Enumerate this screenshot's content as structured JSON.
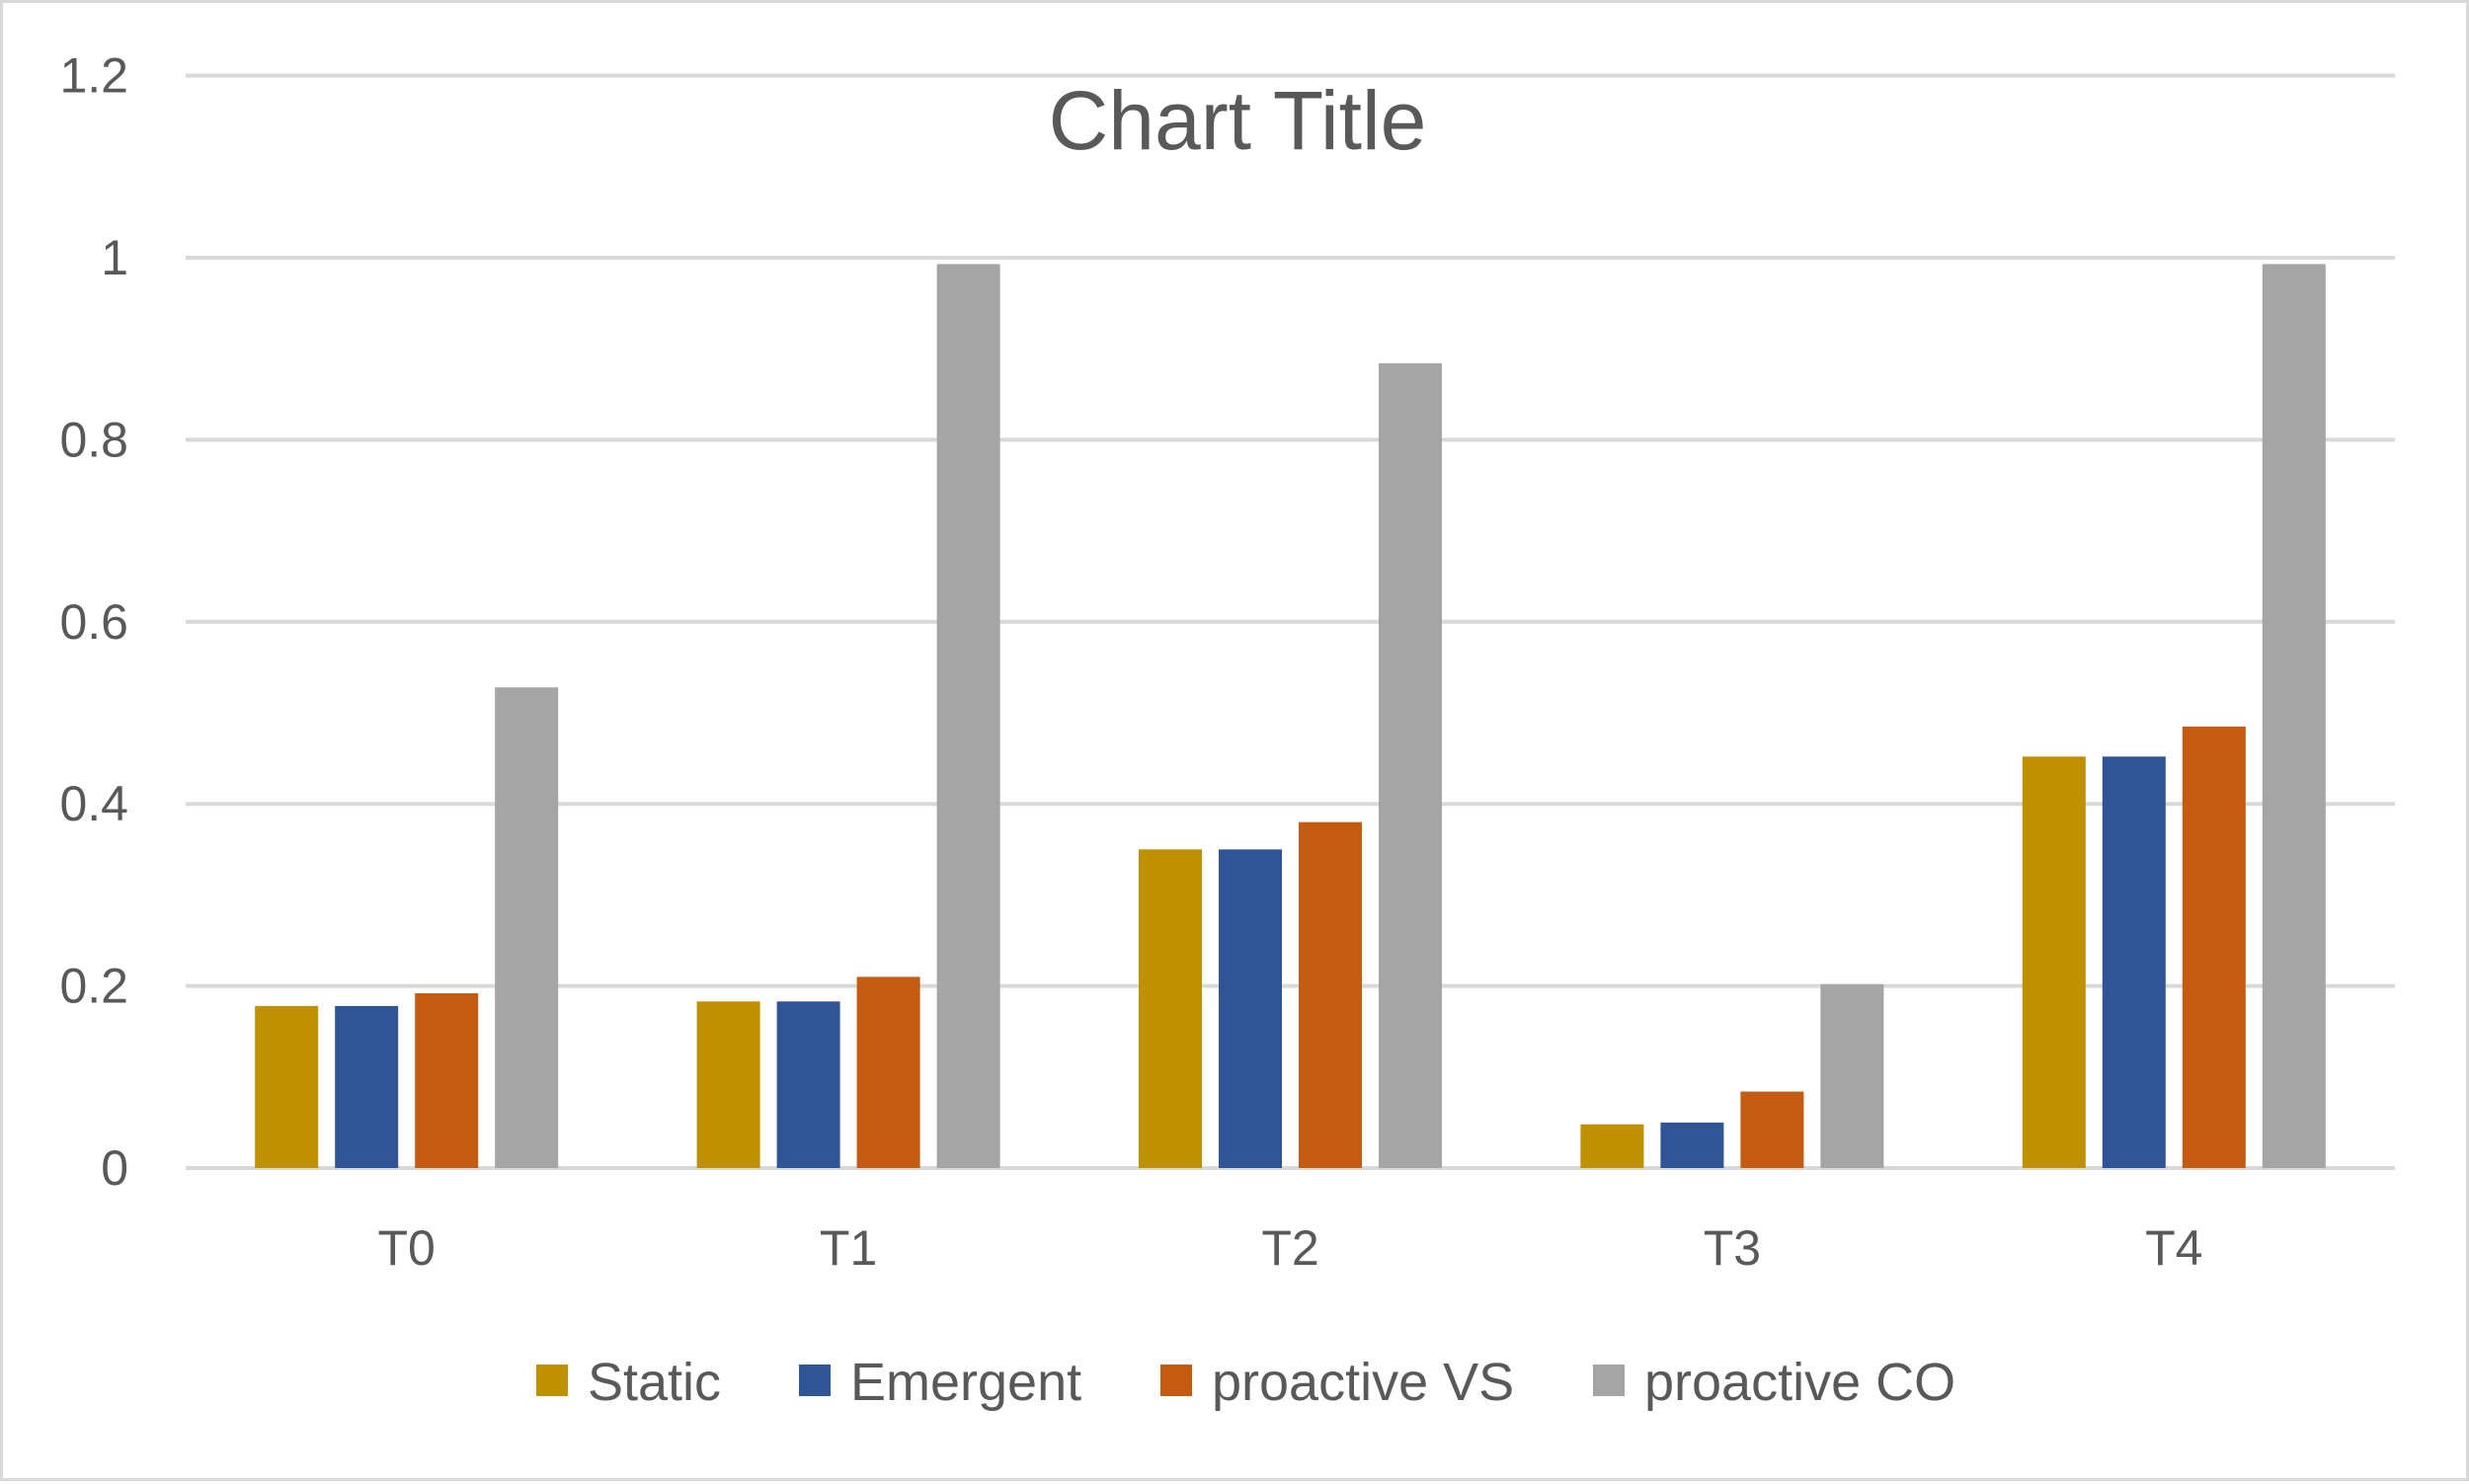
{
  "chart_data": {
    "type": "bar",
    "title": "Chart Title",
    "xlabel": "",
    "ylabel": "",
    "categories": [
      "T0",
      "T1",
      "T2",
      "T3",
      "T4"
    ],
    "ylim": [
      0,
      1.2
    ],
    "yticks": [
      0,
      0.2,
      0.4,
      0.6,
      0.8,
      1,
      1.2
    ],
    "ytick_labels": [
      "0",
      "0.2",
      "0.4",
      "0.6",
      "0.8",
      "1",
      "1.2"
    ],
    "grid": true,
    "legend_position": "bottom",
    "series": [
      {
        "name": "Static",
        "color": "#BF9000",
        "values": [
          0.178,
          0.183,
          0.35,
          0.048,
          0.452
        ]
      },
      {
        "name": "Emergent",
        "color": "#2F5597",
        "values": [
          0.178,
          0.183,
          0.35,
          0.05,
          0.452
        ]
      },
      {
        "name": "proactive VS",
        "color": "#C55A11",
        "values": [
          0.192,
          0.21,
          0.38,
          0.084,
          0.485
        ]
      },
      {
        "name": "proactive CO",
        "color": "#A5A5A5",
        "values": [
          0.528,
          0.993,
          0.884,
          0.202,
          0.993
        ]
      }
    ]
  }
}
